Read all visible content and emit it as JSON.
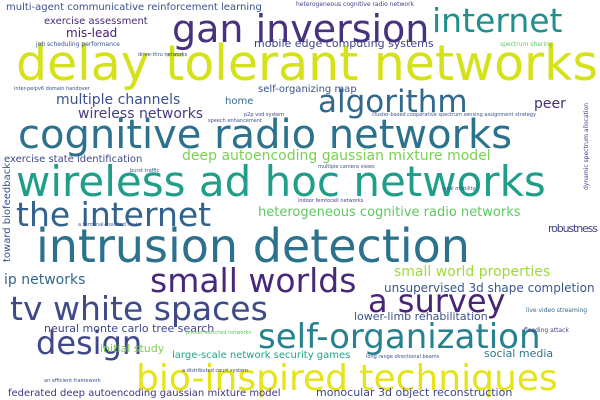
{
  "words": [
    "delay tolerant networks",
    "gan inversion",
    "internet",
    "cognitive radio networks",
    "algorithm",
    "wireless ad hoc networks",
    "the internet",
    "intrusion detection",
    "small worlds",
    "tv white spaces",
    "a survey",
    "self-organization",
    "design",
    "bio-inspired techniques",
    "multiple channels",
    "wireless networks",
    "peer",
    "deep autoencoding gaussian mixture model",
    "heterogeneous cognitive radio networks",
    "mobile edge computing systems",
    "exercise assessment",
    "multi-agent communicative reinforcement learning",
    "mis-lead",
    "exercise state identification",
    "ip networks",
    "small world properties",
    "robustness",
    "unsupervised 3d shape completion",
    "lower-limb rehabilitation",
    "neural monte carlo tree search",
    "large-scale network security games",
    "initial study",
    "social media",
    "federated deep autoencoding gaussian mixture model",
    "monocular 3d object reconstruction",
    "self-organizing map",
    "home",
    "toward biofeedback",
    "heterogeneous cognitive radio network",
    "drive-thru networks",
    "spectrum sharing",
    "live video streaming",
    "flooding attack",
    "job scheduling performance",
    "inter-peipv6 domain handover",
    "a distributed court system",
    "an efficient framework",
    "pocket switched networks",
    "cluster-based cooperative spectrum sensing assignment strategy",
    "multiple camera views",
    "indoor femtocell networks",
    "a terminal-assisted route",
    "burst traffic",
    "local mobility",
    "p2p vod system",
    "long range directional beams",
    "speech enhancement",
    "dynamic spectrum allocation"
  ]
}
